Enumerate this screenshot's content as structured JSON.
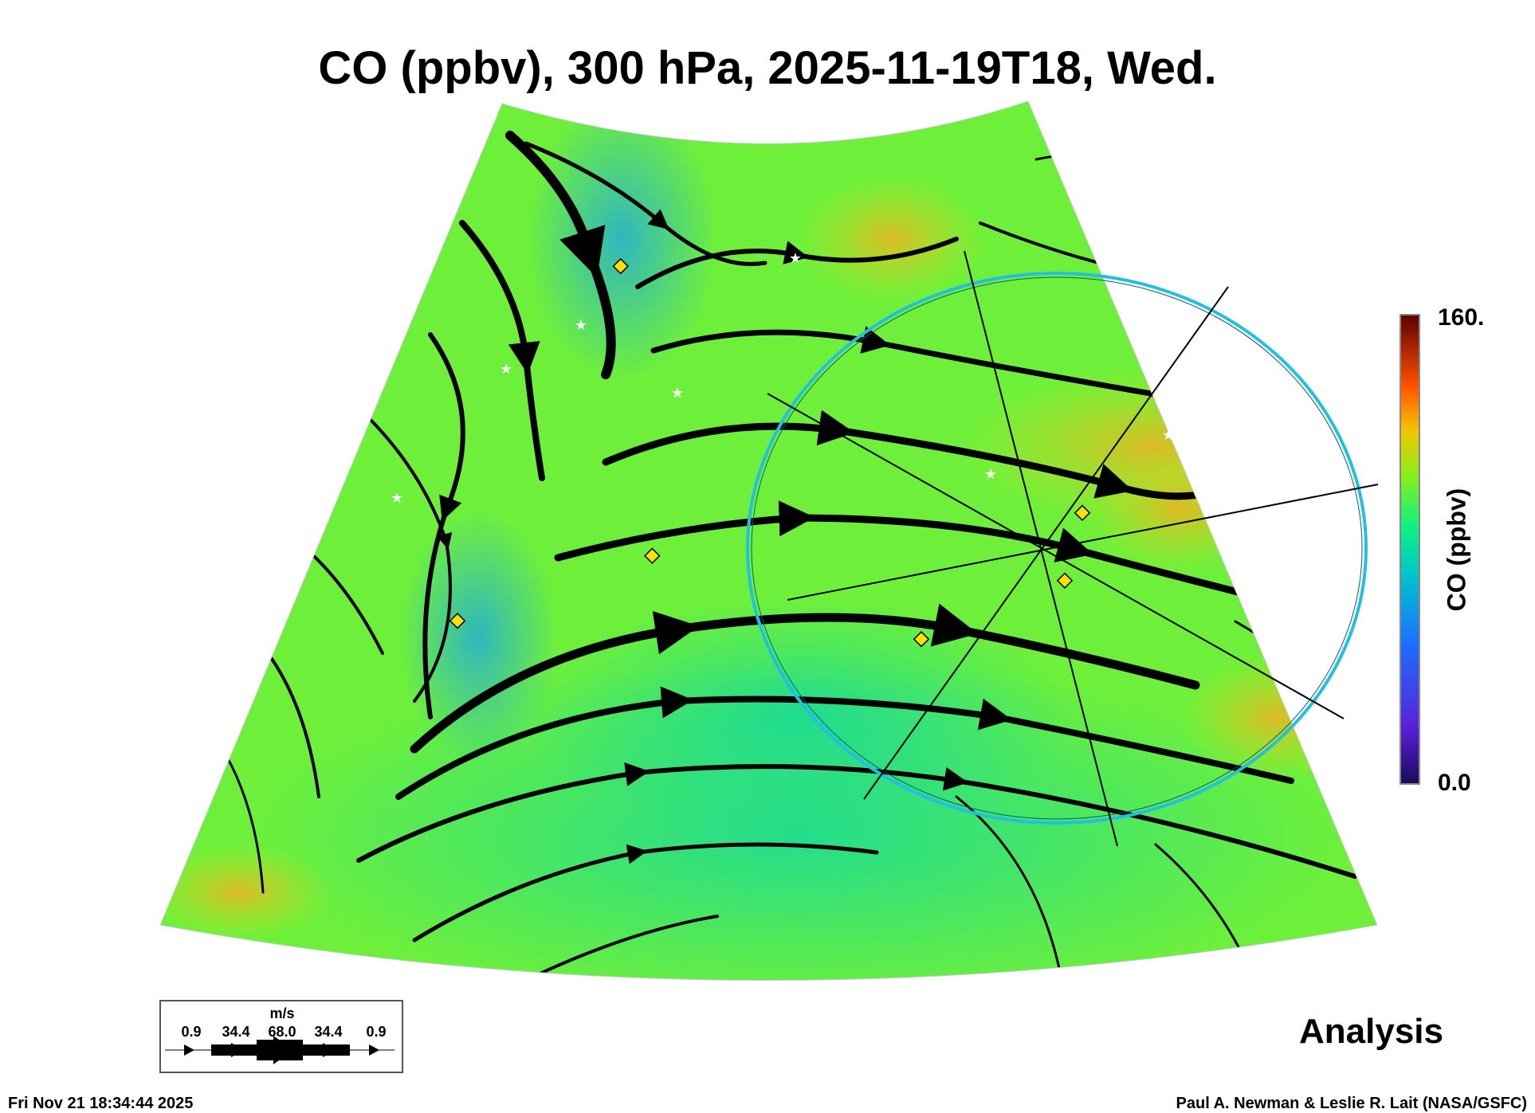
{
  "chart_data": {
    "type": "heatmap",
    "title": "CO (ppbv), 300 hPa, 2025-11-19T18, Wed.",
    "field": "CO (ppbv)",
    "colorbar": {
      "label": "CO (ppbv)",
      "min_label": "0.0",
      "max_label": "160.",
      "range": [
        0,
        160
      ]
    },
    "overlay": "wind streamlines",
    "wind_legend": {
      "units": "m/s",
      "ticks": [
        "0.9",
        "34.4",
        "68.0",
        "34.4",
        "0.9"
      ]
    },
    "annotation": "Analysis"
  },
  "colors": {
    "low": "#1a0a5a",
    "mid": "#2cf07a",
    "high": "#5a0000",
    "circle": "#22c0e0",
    "marker": "#ffe000"
  },
  "footer": {
    "timestamp": "Fri Nov 21 18:34:44 2025",
    "credit": "Paul A. Newman & Leslie R. Lait (NASA/GSFC)"
  }
}
